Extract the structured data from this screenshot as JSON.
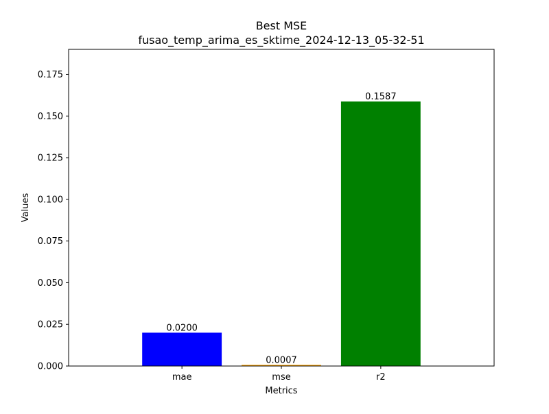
{
  "chart_data": {
    "type": "bar",
    "title": "Best MSE",
    "subtitle": "fusao_temp_arima_es_sktime_2024-12-13_05-32-51",
    "xlabel": "Metrics",
    "ylabel": "Values",
    "categories": [
      "mae",
      "mse",
      "r2"
    ],
    "values": [
      0.02,
      0.0007,
      0.1587
    ],
    "value_labels": [
      "0.0200",
      "0.0007",
      "0.1587"
    ],
    "colors": [
      "#0000ff",
      "#ffa500",
      "#008000"
    ],
    "ylim": [
      0,
      0.19
    ],
    "yticks": [
      0.0,
      0.025,
      0.05,
      0.075,
      0.1,
      0.125,
      0.15,
      0.175
    ],
    "ytick_labels": [
      "0.000",
      "0.025",
      "0.050",
      "0.075",
      "0.100",
      "0.125",
      "0.150",
      "0.175"
    ],
    "grid": false,
    "legend": "none"
  }
}
